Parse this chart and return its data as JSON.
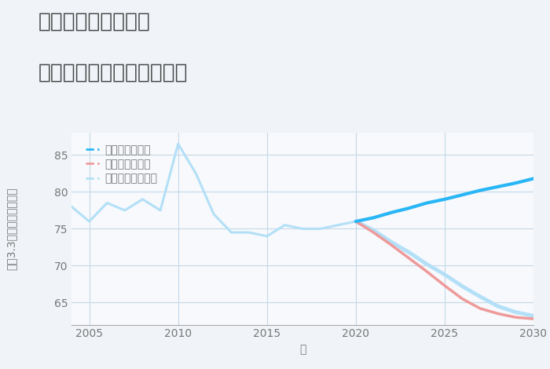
{
  "title_line1": "千葉県野田市岩名の",
  "title_line2": "中古マンションの価格推移",
  "xlabel": "年",
  "ylabel": "坪（3.3㎡）単価（万円）",
  "bg_color": "#f0f4f8",
  "plot_bg_color": "#f7f9fc",
  "grid_color": "#c5d8e8",
  "historical_years": [
    2004,
    2005,
    2006,
    2007,
    2008,
    2009,
    2010,
    2011,
    2012,
    2013,
    2014,
    2015,
    2016,
    2017,
    2018,
    2019,
    2020
  ],
  "historical_values": [
    78.0,
    76.0,
    78.5,
    77.5,
    79.0,
    77.5,
    86.5,
    82.5,
    77.0,
    74.5,
    74.5,
    74.0,
    75.5,
    75.0,
    75.0,
    75.5,
    76.0
  ],
  "good_years": [
    2020,
    2021,
    2022,
    2023,
    2024,
    2025,
    2026,
    2027,
    2028,
    2029,
    2030
  ],
  "good_values": [
    76.0,
    76.5,
    77.2,
    77.8,
    78.5,
    79.0,
    79.6,
    80.2,
    80.7,
    81.2,
    81.8
  ],
  "bad_years": [
    2020,
    2021,
    2022,
    2023,
    2024,
    2025,
    2026,
    2027,
    2028,
    2029,
    2030
  ],
  "bad_values": [
    76.0,
    74.5,
    72.8,
    71.0,
    69.2,
    67.3,
    65.5,
    64.2,
    63.5,
    63.0,
    62.8
  ],
  "normal_years": [
    2020,
    2021,
    2022,
    2023,
    2024,
    2025,
    2026,
    2027,
    2028,
    2029,
    2030
  ],
  "normal_values": [
    76.0,
    74.8,
    73.2,
    71.8,
    70.2,
    68.8,
    67.2,
    65.8,
    64.5,
    63.7,
    63.2
  ],
  "good_color": "#29b6f6",
  "bad_color": "#ef9a9a",
  "normal_color": "#b3e0f7",
  "hist_color": "#b3e0f7",
  "ylim": [
    62,
    88
  ],
  "xlim": [
    2004,
    2030
  ],
  "yticks": [
    65,
    70,
    75,
    80,
    85
  ],
  "xticks": [
    2005,
    2010,
    2015,
    2020,
    2025,
    2030
  ],
  "legend_labels": [
    "グッドシナリオ",
    "バッドシナリオ",
    "ノーマルシナリオ"
  ],
  "legend_colors": [
    "#29b6f6",
    "#ef9a9a",
    "#b3e0f7"
  ],
  "title_color": "#444444",
  "title_fontsize": 19,
  "axis_fontsize": 10,
  "tick_fontsize": 10,
  "legend_fontsize": 10
}
